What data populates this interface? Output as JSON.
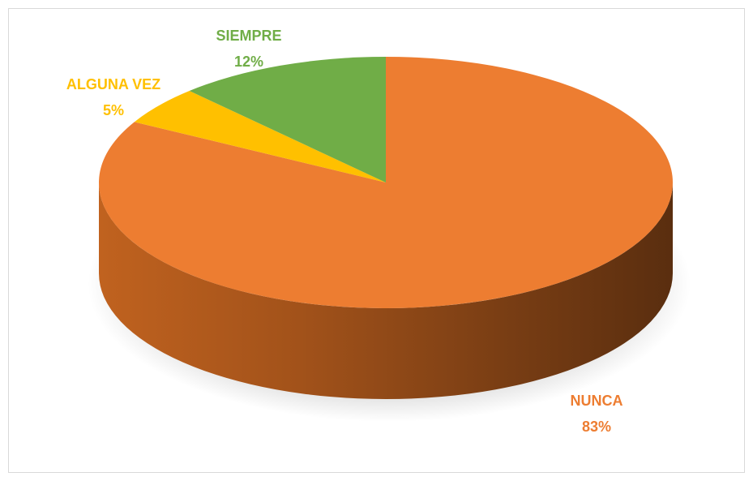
{
  "chart_data": {
    "type": "pie",
    "categories": [
      "NUNCA",
      "ALGUNA VEZ",
      "SIEMPRE"
    ],
    "values": [
      83,
      5,
      12
    ],
    "value_labels": [
      "83%",
      "5%",
      "12%"
    ],
    "colors": [
      "#ed7d31",
      "#ffc000",
      "#70ad47"
    ]
  }
}
